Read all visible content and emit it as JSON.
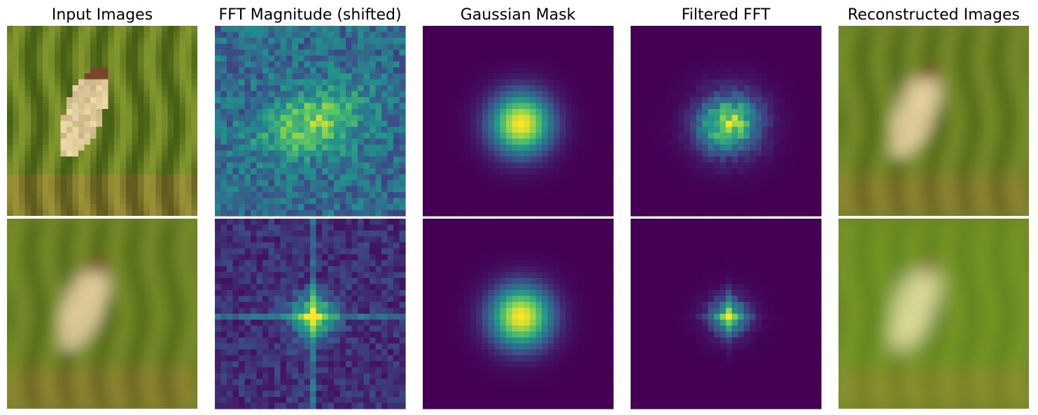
{
  "titles": [
    "Input Images",
    "FFT Magnitude (shifted)",
    "Gaussian Mask",
    "Filtered FFT",
    "Reconstructed Images"
  ]
}
